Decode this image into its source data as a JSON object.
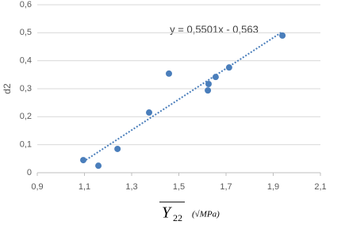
{
  "chart_data": {
    "type": "scatter",
    "x": [
      1.095,
      1.159,
      1.24,
      1.374,
      1.458,
      1.626,
      1.623,
      1.656,
      1.713,
      1.939
    ],
    "values": [
      0.045,
      0.025,
      0.085,
      0.215,
      0.354,
      0.317,
      0.294,
      0.342,
      0.376,
      0.49
    ],
    "color": "#4a7ebb",
    "xlim": [
      0.9,
      2.1
    ],
    "xticks": [
      {
        "value": 0.9,
        "label": "0,9"
      },
      {
        "value": 1.1,
        "label": "1,1"
      },
      {
        "value": 1.3,
        "label": "1,3"
      },
      {
        "value": 1.5,
        "label": "1,5"
      },
      {
        "value": 1.7,
        "label": "1,7"
      },
      {
        "value": 1.9,
        "label": "1,9"
      },
      {
        "value": 2.1,
        "label": "2,1"
      }
    ],
    "ylim": [
      0,
      0.6
    ],
    "yticks": [
      0,
      {
        "value": 0.1,
        "label": "0,1"
      },
      {
        "value": 0.2,
        "label": "0,2"
      },
      {
        "value": 0.3,
        "label": "0,3"
      },
      {
        "value": 0.4,
        "label": "0,4"
      },
      {
        "value": 0.5,
        "label": "0,5"
      },
      {
        "value": 0.6,
        "label": "0,6"
      }
    ],
    "grid": true,
    "y_label": "d2",
    "x_label": {
      "symbol": "Y",
      "subscript": "22",
      "unit": "(√MPa)"
    },
    "trendline": {
      "label": "y = 0,5501x - 0,563",
      "slope": 0.5501,
      "intercept": -0.563,
      "color": "#4a7ebb"
    }
  }
}
